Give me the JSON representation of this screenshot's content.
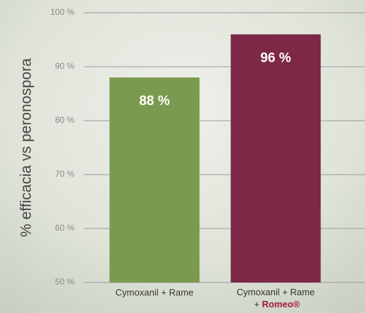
{
  "chart_data": {
    "type": "bar",
    "y_axis_label": "% efficacia vs peronospora",
    "categories": [
      "Cymoxanil + Rame",
      "Cymoxanil + Rame + Romeo®"
    ],
    "values": [
      88,
      96
    ],
    "value_labels": [
      "88 %",
      "96 %"
    ],
    "colors": [
      "#7a9b4f",
      "#7c2846"
    ],
    "ylim": [
      50,
      100
    ],
    "yticks": [
      {
        "value": 50,
        "label": "50 %"
      },
      {
        "value": 60,
        "label": "60 %"
      },
      {
        "value": 70,
        "label": "70 %"
      },
      {
        "value": 80,
        "label": "80 %"
      },
      {
        "value": 90,
        "label": "90 %"
      },
      {
        "value": 100,
        "label": "100 %"
      }
    ],
    "grid": true
  }
}
